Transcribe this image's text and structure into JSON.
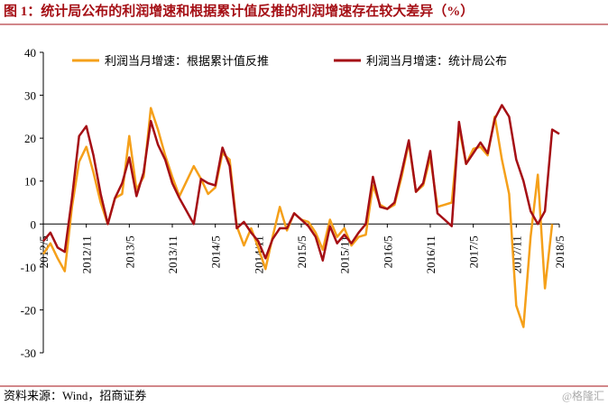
{
  "chart_data": {
    "type": "line",
    "title": "图 1：统计局公布的利润增速和根据累计值反推的利润增速存在较大差异（%）",
    "source": "资料来源：Wind，招商证券",
    "watermark": "@格隆汇",
    "categories": [
      "2012/5",
      null,
      null,
      null,
      null,
      null,
      "2012/11",
      null,
      null,
      null,
      null,
      null,
      "2013/5",
      null,
      null,
      null,
      null,
      null,
      "2013/11",
      null,
      null,
      null,
      null,
      null,
      "2014/5",
      null,
      null,
      null,
      null,
      null,
      "2014/11",
      null,
      null,
      null,
      null,
      null,
      "2015/5",
      null,
      null,
      null,
      null,
      null,
      "2015/11",
      null,
      null,
      null,
      null,
      null,
      "2016/5",
      null,
      null,
      null,
      null,
      null,
      "2016/11",
      null,
      null,
      null,
      null,
      null,
      "2017/5",
      null,
      null,
      null,
      null,
      null,
      "2017/11",
      null,
      null,
      null,
      null,
      null,
      "2018/5"
    ],
    "series": [
      {
        "name": "利润当月增速：根据累计值反推",
        "color": "#F5A01A",
        "values": [
          -7,
          -4.5,
          -8,
          -11,
          4,
          14.5,
          18,
          12,
          5,
          0,
          6,
          7,
          20.5,
          8,
          11,
          27,
          22,
          16,
          11,
          6.5,
          10,
          13.5,
          10.5,
          7,
          8.5,
          16.5,
          15,
          -0.5,
          -5,
          -1,
          -5.5,
          -10.5,
          -3,
          4,
          -1.5,
          2.5,
          1,
          0.5,
          -2,
          -6,
          1,
          -3,
          -1,
          -5,
          -3,
          -2.5,
          9,
          4.5,
          3.5,
          4.5,
          11,
          19,
          7.5,
          9,
          15.5,
          4,
          4.5,
          5,
          22.5,
          14,
          17.5,
          18,
          16,
          25,
          15,
          7,
          -19,
          -24,
          -3,
          11.5,
          -15,
          0,
          null
        ]
      },
      {
        "name": "利润当月增速：统计局公布",
        "color": "#A50F15",
        "values": [
          -4,
          -2,
          -5.5,
          -6.5,
          6,
          20.5,
          22.8,
          16,
          7,
          0,
          6,
          9.5,
          15.5,
          6.5,
          12,
          24,
          18.5,
          15,
          9.5,
          6,
          3,
          0,
          10.5,
          9.5,
          9,
          17.8,
          13.5,
          -1,
          0.5,
          -2,
          -4,
          -8,
          -3.5,
          -1,
          -1,
          2.5,
          1,
          -0.5,
          -3,
          -8.5,
          -0.5,
          -4.5,
          -2.5,
          -4.5,
          -2,
          0,
          11,
          4,
          3.5,
          5,
          12,
          19.5,
          7.5,
          9.5,
          17,
          2.5,
          1,
          -0.5,
          23.8,
          14,
          16.5,
          19,
          16.5,
          24.5,
          27.7,
          25,
          15,
          10,
          3,
          0,
          3,
          22,
          21
        ]
      }
    ],
    "ylim": [
      -30,
      40
    ],
    "yticks": [
      -30,
      -20,
      -10,
      0,
      10,
      20,
      30,
      40
    ],
    "grid": false,
    "legend": "top"
  }
}
